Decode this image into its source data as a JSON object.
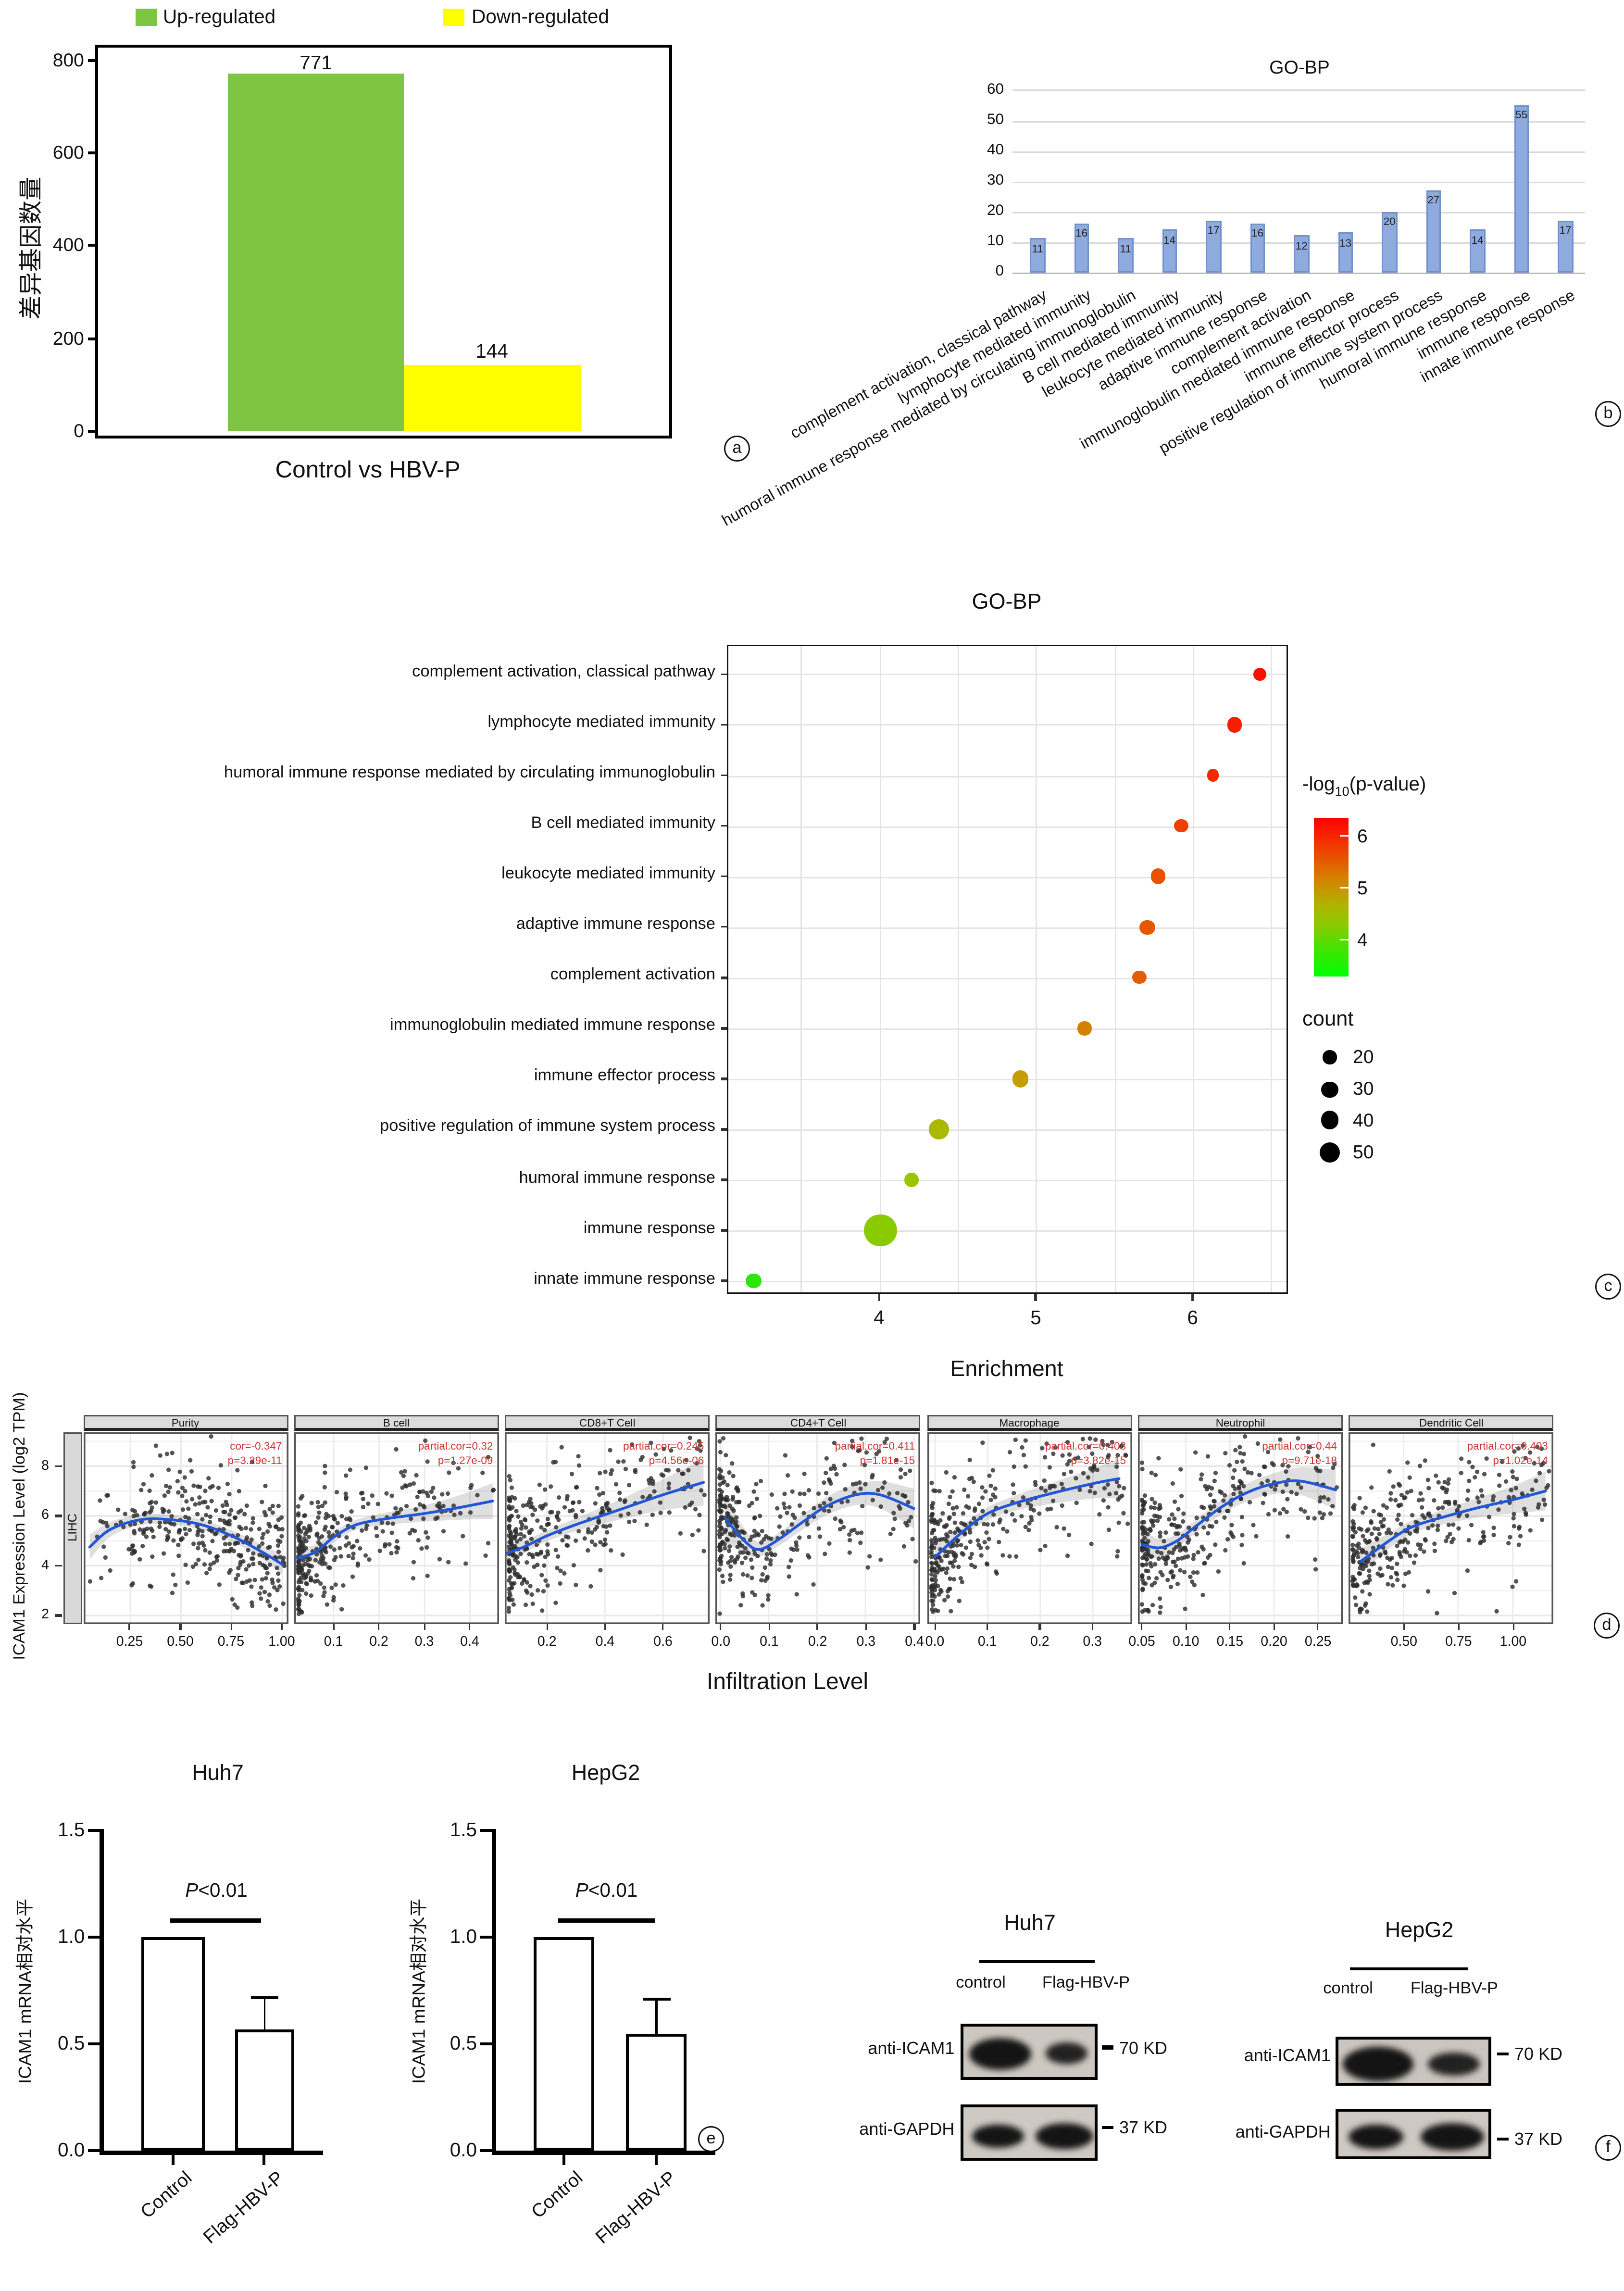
{
  "figure": {
    "panel_labels": {
      "a": "a",
      "b": "b",
      "c": "c",
      "d": "d",
      "e": "e",
      "f": "f"
    }
  },
  "chart_data": [
    {
      "id": "a",
      "type": "bar",
      "legend": [
        {
          "label": "Up-regulated",
          "color": "#7EC544"
        },
        {
          "label": "Down-regulated",
          "color": "#FFFF00"
        }
      ],
      "categories": [
        "Up-regulated",
        "Down-regulated"
      ],
      "values": [
        771,
        144
      ],
      "value_labels": [
        "771",
        "144"
      ],
      "ylabel": "差异基因数量",
      "xlabel": "Control vs HBV-P",
      "ylim": [
        0,
        800
      ],
      "yticks": [
        0,
        200,
        400,
        600,
        800
      ]
    },
    {
      "id": "b",
      "type": "bar",
      "title": "GO-BP",
      "categories": [
        "complement activation, classical pathway",
        "lymphocyte mediated immunity",
        "humoral immune response mediated by circulating immunoglobulin",
        "B cell mediated immunity",
        "leukocyte mediated immunity",
        "adaptive immune response",
        "complement activation",
        "immunoglobulin mediated immune response",
        "immune effector process",
        "positive regulation of immune system process",
        "humoral immune response",
        "immune response",
        "innate immune response"
      ],
      "values": [
        11,
        16,
        11,
        14,
        17,
        16,
        12,
        13,
        20,
        27,
        14,
        55,
        17
      ],
      "ylim": [
        0,
        60
      ],
      "yticks": [
        0,
        10,
        20,
        30,
        40,
        50,
        60
      ],
      "bar_color": "#8FAADC",
      "bar_border": "#7191C9"
    },
    {
      "id": "c",
      "type": "bubble",
      "title": "GO-BP",
      "xlabel": "Enrichment",
      "xticks": [
        4,
        5,
        6
      ],
      "xlim": [
        3.05,
        6.6
      ],
      "terms": [
        "complement activation, classical pathway",
        "lymphocyte mediated immunity",
        "humoral immune response mediated by circulating immunoglobulin",
        "B cell mediated immunity",
        "leukocyte mediated immunity",
        "adaptive immune response",
        "complement activation",
        "immunoglobulin mediated immune response",
        "immune effector process",
        "positive regulation of immune system process",
        "humoral immune response",
        "immune response",
        "innate immune response"
      ],
      "enrichment": [
        6.43,
        6.27,
        6.13,
        5.93,
        5.78,
        5.71,
        5.66,
        5.31,
        4.9,
        4.38,
        4.21,
        4.01,
        3.2
      ],
      "count": [
        11,
        16,
        11,
        14,
        17,
        16,
        12,
        13,
        20,
        27,
        14,
        55,
        17
      ],
      "neglog10_pvalue": [
        6.5,
        6.35,
        6.25,
        6.05,
        5.9,
        5.85,
        5.8,
        5.4,
        5.0,
        4.4,
        4.25,
        4.1,
        3.6
      ],
      "dot_colors": [
        "#FB0F00",
        "#F71E00",
        "#F32A00",
        "#EE4000",
        "#E85200",
        "#E65800",
        "#E45C00",
        "#D68000",
        "#C49E00",
        "#AAB800",
        "#9CC400",
        "#8ACB00",
        "#2BE60B"
      ],
      "legend": {
        "color_title_prefix": "-log",
        "color_title_sub": "10",
        "color_title_suffix": "(p-value)",
        "color_ticks": [
          "6",
          "5",
          "4"
        ],
        "size_title": "count",
        "size_ticks": [
          20,
          30,
          40,
          50
        ]
      }
    },
    {
      "id": "d",
      "type": "scatter-facets",
      "ylabel": "ICAM1 Expression Level (log2 TPM)",
      "xlabel": "Infiltration Level",
      "row_label": "LIHC",
      "yticks": [
        2,
        4,
        6,
        8
      ],
      "facets": [
        {
          "name": "Purity",
          "ann": [
            "cor=-0.347",
            "p=3.29e-11"
          ],
          "xticks": [
            "0.25",
            "0.50",
            "0.75",
            "1.00"
          ],
          "xtickvals": [
            0.25,
            0.5,
            0.75,
            1.0
          ],
          "xlim": [
            0.02,
            1.03
          ],
          "n": 330,
          "xpow": 0.62,
          "noise": 1.18,
          "seed": 11,
          "trend": [
            [
              0.05,
              4.75
            ],
            [
              0.15,
              5.45
            ],
            [
              0.3,
              5.85
            ],
            [
              0.45,
              5.85
            ],
            [
              0.6,
              5.65
            ],
            [
              0.75,
              5.2
            ],
            [
              0.9,
              4.55
            ],
            [
              1.0,
              4.05
            ]
          ],
          "band": [
            0.5,
            0.3,
            0.22,
            0.2,
            0.2,
            0.22,
            0.28,
            0.38
          ]
        },
        {
          "name": "B cell",
          "ann": [
            "partial.cor=0.32",
            "p=1.27e-09"
          ],
          "xticks": [
            "0.1",
            "0.2",
            "0.3",
            "0.4"
          ],
          "xtickvals": [
            0.1,
            0.2,
            0.3,
            0.4
          ],
          "xlim": [
            0.013,
            0.464
          ],
          "n": 330,
          "xpow": 2.8,
          "noise": 1.22,
          "seed": 22,
          "trend": [
            [
              0.02,
              4.3
            ],
            [
              0.06,
              4.55
            ],
            [
              0.1,
              5.15
            ],
            [
              0.15,
              5.65
            ],
            [
              0.22,
              5.9
            ],
            [
              0.3,
              6.1
            ],
            [
              0.38,
              6.35
            ],
            [
              0.45,
              6.6
            ]
          ],
          "band": [
            0.45,
            0.3,
            0.22,
            0.2,
            0.25,
            0.33,
            0.5,
            0.72
          ]
        },
        {
          "name": "CD8+T Cell",
          "ann": [
            "partial.cor=0.245",
            "p=4.56e-06"
          ],
          "xticks": [
            "0.2",
            "0.4",
            "0.6"
          ],
          "xtickvals": [
            0.2,
            0.4,
            0.6
          ],
          "xlim": [
            0.055,
            0.761
          ],
          "n": 330,
          "xpow": 2.4,
          "noise": 1.25,
          "seed": 33,
          "trend": [
            [
              0.06,
              4.5
            ],
            [
              0.12,
              4.75
            ],
            [
              0.2,
              5.2
            ],
            [
              0.3,
              5.65
            ],
            [
              0.45,
              6.25
            ],
            [
              0.6,
              6.85
            ],
            [
              0.74,
              7.35
            ]
          ],
          "band": [
            0.4,
            0.26,
            0.22,
            0.26,
            0.4,
            0.62,
            0.95
          ]
        },
        {
          "name": "CD4+T Cell",
          "ann": [
            "partial.cor=0.411",
            "p=1.81e-15"
          ],
          "xticks": [
            "0.0",
            "0.1",
            "0.2",
            "0.3",
            "0.4"
          ],
          "xtickvals": [
            0.0,
            0.1,
            0.2,
            0.3,
            0.4
          ],
          "xlim": [
            -0.01,
            0.413
          ],
          "n": 330,
          "xpow": 2.2,
          "noise": 1.2,
          "seed": 44,
          "trend": [
            [
              0.01,
              5.9
            ],
            [
              0.05,
              5.0
            ],
            [
              0.08,
              4.65
            ],
            [
              0.12,
              5.05
            ],
            [
              0.17,
              5.75
            ],
            [
              0.22,
              6.4
            ],
            [
              0.28,
              6.85
            ],
            [
              0.33,
              6.85
            ],
            [
              0.4,
              6.3
            ]
          ],
          "band": [
            0.95,
            0.5,
            0.3,
            0.26,
            0.3,
            0.36,
            0.42,
            0.55,
            0.8
          ]
        },
        {
          "name": "Macrophage",
          "ann": [
            "partial.cor=0.408",
            "p=3.82e-15"
          ],
          "xticks": [
            "0.0",
            "0.1",
            "0.2",
            "0.3"
          ],
          "xtickvals": [
            0.0,
            0.1,
            0.2,
            0.3
          ],
          "xlim": [
            -0.015,
            0.375
          ],
          "n": 330,
          "xpow": 2.2,
          "noise": 1.2,
          "seed": 55,
          "trend": [
            [
              0.0,
              4.35
            ],
            [
              0.03,
              4.95
            ],
            [
              0.06,
              5.5
            ],
            [
              0.1,
              6.1
            ],
            [
              0.15,
              6.5
            ],
            [
              0.22,
              6.9
            ],
            [
              0.3,
              7.3
            ],
            [
              0.35,
              7.5
            ]
          ],
          "band": [
            0.5,
            0.32,
            0.26,
            0.26,
            0.3,
            0.42,
            0.6,
            0.8
          ]
        },
        {
          "name": "Neutrophil",
          "ann": [
            "partial.cor=0.44",
            "p=9.71e-18"
          ],
          "xticks": [
            "0.05",
            "0.10",
            "0.15",
            "0.20",
            "0.25"
          ],
          "xtickvals": [
            0.05,
            0.1,
            0.15,
            0.2,
            0.25
          ],
          "xlim": [
            0.0456,
            0.278
          ],
          "n": 330,
          "xpow": 2.0,
          "noise": 1.18,
          "seed": 66,
          "trend": [
            [
              0.05,
              4.85
            ],
            [
              0.07,
              4.72
            ],
            [
              0.09,
              5.0
            ],
            [
              0.11,
              5.55
            ],
            [
              0.14,
              6.35
            ],
            [
              0.17,
              6.95
            ],
            [
              0.2,
              7.3
            ],
            [
              0.23,
              7.4
            ],
            [
              0.27,
              7.05
            ]
          ],
          "band": [
            0.6,
            0.36,
            0.27,
            0.26,
            0.3,
            0.36,
            0.42,
            0.55,
            0.8
          ]
        },
        {
          "name": "Dendritic Cell",
          "ann": [
            "partial.cor=0.403",
            "p=1.02e-14"
          ],
          "xticks": [
            "0.50",
            "0.75",
            "1.00"
          ],
          "xtickvals": [
            0.5,
            0.75,
            1.0
          ],
          "xlim": [
            0.248,
            1.186
          ],
          "n": 330,
          "xpow": 2.0,
          "noise": 1.22,
          "seed": 77,
          "trend": [
            [
              0.3,
              4.15
            ],
            [
              0.45,
              5.1
            ],
            [
              0.55,
              5.6
            ],
            [
              0.7,
              6.0
            ],
            [
              0.85,
              6.35
            ],
            [
              1.0,
              6.65
            ],
            [
              1.15,
              7.0
            ]
          ],
          "band": [
            0.5,
            0.3,
            0.26,
            0.3,
            0.4,
            0.55,
            0.78
          ]
        }
      ]
    },
    {
      "id": "e1",
      "type": "bar",
      "title": "Huh7",
      "ylabel": "ICAM1 mRNA相对水平",
      "categories": [
        "Control",
        "Flag-HBV-P"
      ],
      "values": [
        1.0,
        0.57
      ],
      "errors": [
        0,
        0.15
      ],
      "yticks": [
        "0.0",
        "0.5",
        "1.0",
        "1.5"
      ],
      "ylim": [
        0,
        1.5
      ],
      "sig_p": "P",
      "sig_rest": "<0.01"
    },
    {
      "id": "e2",
      "type": "bar",
      "title": "HepG2",
      "ylabel": "ICAM1 mRNA相对水平",
      "categories": [
        "Control",
        "Flag-HBV-P"
      ],
      "values": [
        1.0,
        0.55
      ],
      "errors": [
        0,
        0.16
      ],
      "yticks": [
        "0.0",
        "0.5",
        "1.0",
        "1.5"
      ],
      "ylim": [
        0,
        1.5
      ],
      "sig_p": "P",
      "sig_rest": "<0.01"
    },
    {
      "id": "f",
      "type": "western-blot",
      "groups": [
        {
          "title": "Huh7",
          "lanes": [
            "control",
            "Flag-HBV-P"
          ],
          "rows": [
            {
              "antibody": "anti-ICAM1",
              "marker": "70 KD"
            },
            {
              "antibody": "anti-GAPDH",
              "marker": "37 KD"
            }
          ]
        },
        {
          "title": "HepG2",
          "lanes": [
            "control",
            "Flag-HBV-P"
          ],
          "rows": [
            {
              "antibody": "anti-ICAM1",
              "marker": "70 KD"
            },
            {
              "antibody": "anti-GAPDH",
              "marker": "37 KD"
            }
          ]
        }
      ]
    }
  ]
}
